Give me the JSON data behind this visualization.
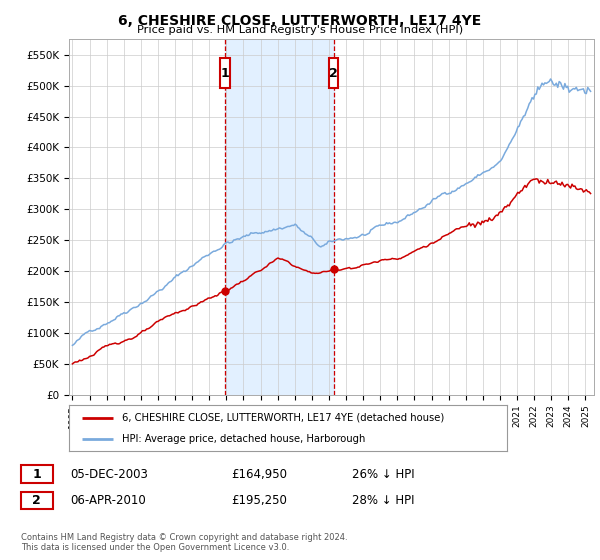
{
  "title": "6, CHESHIRE CLOSE, LUTTERWORTH, LE17 4YE",
  "subtitle": "Price paid vs. HM Land Registry's House Price Index (HPI)",
  "ylabel_ticks": [
    "£0",
    "£50K",
    "£100K",
    "£150K",
    "£200K",
    "£250K",
    "£300K",
    "£350K",
    "£400K",
    "£450K",
    "£500K",
    "£550K"
  ],
  "ytick_values": [
    0,
    50000,
    100000,
    150000,
    200000,
    250000,
    300000,
    350000,
    400000,
    450000,
    500000,
    550000
  ],
  "ylim": [
    0,
    575000
  ],
  "xlim_start": 1995.0,
  "xlim_end": 2025.5,
  "marker1_x": 2003.92,
  "marker1_label": "1",
  "marker1_price": 164950,
  "marker1_date": "05-DEC-2003",
  "marker1_hpi_diff": "26% ↓ HPI",
  "marker2_x": 2010.27,
  "marker2_label": "2",
  "marker2_price": 195250,
  "marker2_date": "06-APR-2010",
  "marker2_hpi_diff": "28% ↓ HPI",
  "sale_color": "#cc0000",
  "hpi_color": "#7aaadd",
  "marker_box_color": "#cc0000",
  "dashed_line_color": "#cc0000",
  "shade_color": "#ddeeff",
  "legend_line1": "6, CHESHIRE CLOSE, LUTTERWORTH, LE17 4YE (detached house)",
  "legend_line2": "HPI: Average price, detached house, Harborough",
  "footnote": "Contains HM Land Registry data © Crown copyright and database right 2024.\nThis data is licensed under the Open Government Licence v3.0.",
  "background_color": "#ffffff",
  "plot_bg_color": "#ffffff",
  "grid_color": "#cccccc"
}
